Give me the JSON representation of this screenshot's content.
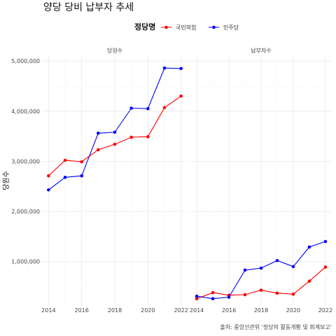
{
  "title": "양당 당비 납부자 추세",
  "legend": {
    "title": "정당명",
    "items": [
      {
        "label": "국민의힘",
        "color": "#ff0000"
      },
      {
        "label": "민주당",
        "color": "#0000ff"
      }
    ]
  },
  "caption": "출처: 중앙선관위 '정당의 활동개황 및 회계보고'",
  "chart_data": {
    "type": "line",
    "ylabel": "당원수",
    "xlabel": "",
    "x_ticks": [
      "2014",
      "2016",
      "2018",
      "2020",
      "2022"
    ],
    "y_ticks": [
      "1,000,000",
      "2,000,000",
      "3,000,000",
      "4,000,000",
      "5,000,000"
    ],
    "y_tick_values": [
      1000000,
      2000000,
      3000000,
      4000000,
      5000000
    ],
    "xlim": [
      2014,
      2022
    ],
    "ylim": [
      130000,
      5100000
    ],
    "grid": true,
    "legend_position": "top",
    "panels": [
      {
        "title": "당원수",
        "x": [
          2014,
          2015,
          2016,
          2017,
          2018,
          2019,
          2020,
          2021,
          2022
        ],
        "series": [
          {
            "name": "국민의힘",
            "color": "#ff0000",
            "values": [
              2710000,
              3020000,
              2990000,
              3230000,
              3340000,
              3480000,
              3490000,
              4070000,
              4300000
            ]
          },
          {
            "name": "민주당",
            "color": "#0000ff",
            "values": [
              2430000,
              2680000,
              2710000,
              3560000,
              3580000,
              4060000,
              4050000,
              4860000,
              4850000
            ]
          }
        ]
      },
      {
        "title": "납부자수",
        "x": [
          2014,
          2015,
          2016,
          2017,
          2018,
          2019,
          2020,
          2021,
          2022
        ],
        "series": [
          {
            "name": "국민의힘",
            "color": "#ff0000",
            "values": [
              260000,
              380000,
              330000,
              340000,
              430000,
              370000,
              350000,
              610000,
              890000
            ]
          },
          {
            "name": "민주당",
            "color": "#0000ff",
            "values": [
              310000,
              260000,
              290000,
              830000,
              870000,
              1020000,
              900000,
              1290000,
              1400000
            ]
          }
        ]
      }
    ]
  }
}
